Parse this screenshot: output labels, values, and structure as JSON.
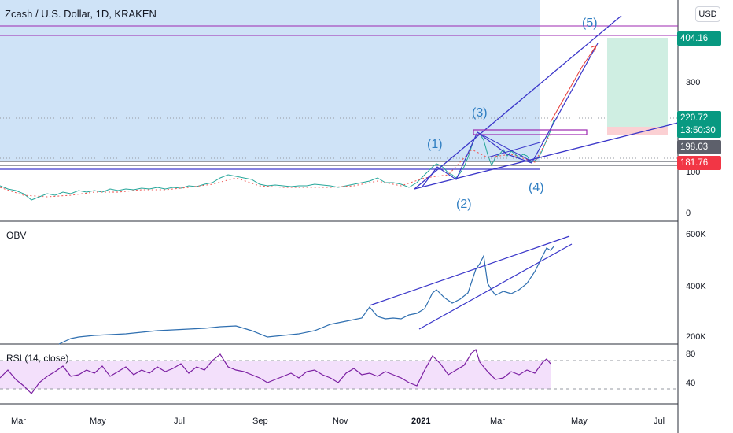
{
  "title": "Zcash / U.S. Dollar, 1D, KRAKEN",
  "currency_button": "USD",
  "price_axis": {
    "ticks": [
      "300",
      "100",
      "0"
    ],
    "tag_404": "404.16",
    "tag_current_price": "220.72",
    "tag_current_timer": "13:50:30",
    "tag_198": "198.03",
    "tag_181": "181.76"
  },
  "waves": [
    "(1)",
    "(2)",
    "(3)",
    "(4)",
    "(5)"
  ],
  "obv": {
    "label": "OBV",
    "ticks": [
      "600K",
      "400K",
      "200K"
    ]
  },
  "rsi": {
    "label": "RSI (14, close)",
    "ticks": [
      "80",
      "40"
    ]
  },
  "time_axis": [
    "Mar",
    "May",
    "Jul",
    "Sep",
    "Nov",
    "2021",
    "Mar",
    "May",
    "Jul"
  ],
  "colors": {
    "highlight_zone": "#cfe3f7",
    "trendline": "#3a36c9",
    "wave_label": "#2f7ec2",
    "price_series": "#2f6fb0",
    "rsi_line": "#7b1fa2",
    "rsi_band": "#f3e0fb",
    "profit_zone": "#cfeee2",
    "loss_zone": "#fbd0d3",
    "tag_green": "#089981",
    "tag_gray": "#5d606b",
    "tag_red": "#f23645"
  }
}
